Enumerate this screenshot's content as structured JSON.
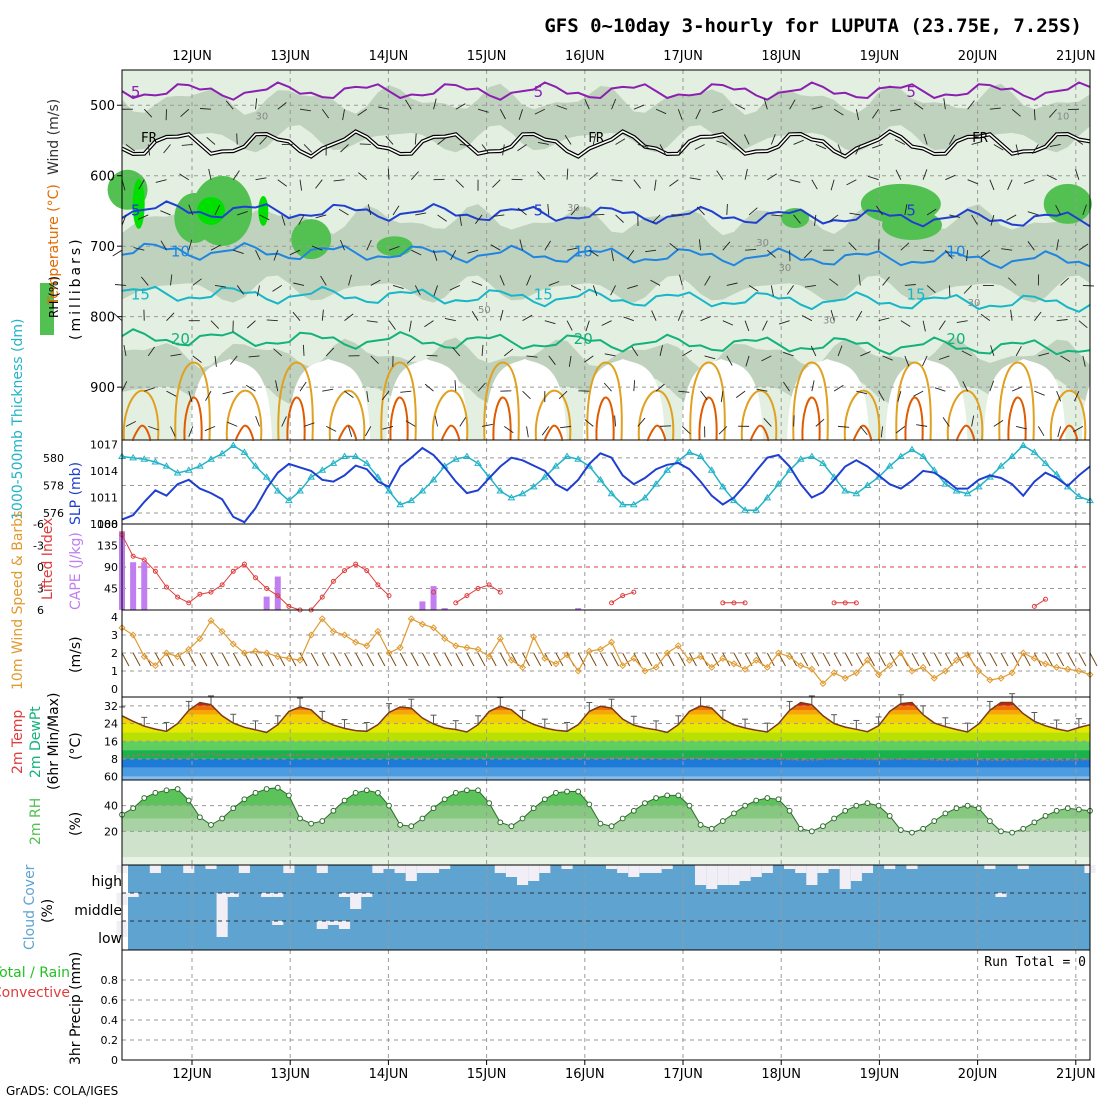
{
  "chart_data": {
    "type": "meteogram",
    "title": "GFS 0~10day 3-hourly for LUPUTA (23.75E, 7.25S)",
    "footer": "GrADS: COLA/IGES",
    "dates": [
      "12JUN",
      "13JUN",
      "14JUN",
      "15JUN",
      "16JUN",
      "17JUN",
      "18JUN",
      "19JUN",
      "20JUN",
      "21JUN"
    ],
    "colors": {
      "grid": "#9a9a9a",
      "frame": "#000000",
      "rh_light": "#e3efe0",
      "rh_mid": "#b9ccb6",
      "rh_green": "#52c152",
      "rh_bright": "#00e000",
      "thick": "#22b3c8",
      "slp": "#1f3fd0",
      "lifted": "#e03c3c",
      "cape": "#c07ef0",
      "wind": "#e09a30",
      "rh2m": "#52c152",
      "cloud": "#5fa3d1",
      "cloud_light": "#f1eef5"
    },
    "upper_air": {
      "ylabel": "(millibars)",
      "legend_labels": [
        "Wind (m/s)",
        "Temperature (°C)",
        "RH (%)"
      ],
      "pressure_ticks": [
        500,
        600,
        700,
        800,
        900
      ],
      "pressure_range": [
        450,
        975
      ],
      "isotherms": [
        {
          "label": "5",
          "color": "#8a1fb0",
          "level": 480
        },
        {
          "label": "FR",
          "color": "#000000",
          "level": 555
        },
        {
          "label": "5",
          "color": "#1f3fd0",
          "level": 648
        },
        {
          "label": "10",
          "color": "#1f85e0",
          "level": 706
        },
        {
          "label": "15",
          "color": "#17b6c8",
          "level": 767
        },
        {
          "label": "20",
          "color": "#12b27a",
          "level": 830
        }
      ],
      "contour_labels": [
        "30",
        "50",
        "10"
      ]
    },
    "thickness_slp": {
      "left_label": "1000-500mb Thickness (dm)",
      "right_label": "SLP (mb)",
      "left_ticks": [
        576,
        578,
        580
      ],
      "left_range": [
        575.2,
        581.3
      ],
      "right_ticks": [
        1008,
        1011,
        1014,
        1017
      ],
      "right_range": [
        1008,
        1017.5
      ],
      "thickness": [
        580.1,
        580.0,
        579.9,
        579.7,
        579.4,
        578.9,
        579.1,
        579.4,
        579.9,
        580.3,
        580.9,
        580.4,
        579.4,
        578.6,
        577.6,
        576.9,
        577.6,
        578.6,
        579.1,
        579.6,
        580.1,
        580.1,
        579.6,
        578.6,
        577.6,
        576.6,
        576.9,
        577.6,
        578.4,
        579.4,
        579.9,
        580.1,
        579.6,
        578.6,
        577.6,
        577.1,
        577.4,
        577.9,
        578.6,
        579.4,
        580.1,
        579.9,
        579.4,
        578.4,
        577.4,
        576.6,
        576.6,
        577.1,
        578.1,
        579.1,
        579.8,
        580.4,
        580.1,
        579.1,
        577.9,
        576.9,
        576.2,
        576.2,
        577.1,
        578.1,
        579.1,
        579.9,
        580.1,
        579.6,
        578.6,
        577.6,
        577.4,
        578.0,
        578.6,
        579.4,
        580.1,
        580.6,
        580.1,
        579.1,
        578.1,
        577.6,
        577.4,
        577.9,
        578.6,
        579.4,
        580.1,
        580.9,
        580.4,
        579.6,
        578.8,
        577.9,
        577.2,
        576.9
      ],
      "slp": [
        1008.5,
        1009.0,
        1010.5,
        1011.8,
        1011.2,
        1012.5,
        1013.0,
        1012.0,
        1011.5,
        1010.8,
        1008.8,
        1008.2,
        1009.8,
        1012.0,
        1013.8,
        1014.8,
        1014.4,
        1014.0,
        1013.0,
        1012.8,
        1013.5,
        1014.6,
        1014.2,
        1012.8,
        1012.2,
        1014.5,
        1015.5,
        1016.6,
        1015.8,
        1014.4,
        1012.8,
        1011.5,
        1011.8,
        1013.2,
        1014.5,
        1015.5,
        1015.2,
        1014.6,
        1014.0,
        1012.5,
        1011.8,
        1013.0,
        1014.8,
        1016.0,
        1015.5,
        1013.5,
        1012.5,
        1013.2,
        1014.2,
        1014.7,
        1014.9,
        1014.2,
        1012.8,
        1011.2,
        1010.2,
        1011.0,
        1012.4,
        1014.0,
        1015.5,
        1015.8,
        1014.5,
        1012.5,
        1011.0,
        1011.6,
        1013.0,
        1014.5,
        1015.2,
        1014.5,
        1013.5,
        1012.5,
        1012.0,
        1012.9,
        1014.0,
        1013.8,
        1013.0,
        1012.0,
        1012.0,
        1013.0,
        1013.5,
        1013.2,
        1012.5,
        1011.2,
        1012.8,
        1013.8,
        1013.2,
        1012.3,
        1013.5,
        1014.5
      ]
    },
    "cape_li": {
      "left_label": "Lifted Index",
      "right_label": "CAPE (J/kg)",
      "li_ticks": [
        -6,
        -3,
        0,
        3,
        6
      ],
      "cape_ticks": [
        45,
        90,
        135,
        180
      ],
      "cape": [
        165,
        100,
        100,
        0,
        0,
        0,
        0,
        0,
        0,
        0,
        0,
        0,
        0,
        28,
        70,
        0,
        0,
        0,
        0,
        0,
        0,
        0,
        0,
        0,
        0,
        0,
        0,
        18,
        50,
        4,
        0,
        0,
        0,
        0,
        0,
        0,
        0,
        0,
        0,
        0,
        0,
        4,
        0,
        0,
        0,
        0,
        0,
        0,
        0,
        0,
        0,
        0,
        0,
        0,
        0,
        0,
        0,
        0,
        0,
        0,
        0,
        0,
        0,
        0,
        0,
        0,
        0,
        0,
        0,
        0,
        0,
        0,
        0,
        0,
        0,
        0,
        0,
        0,
        0,
        0,
        0,
        0,
        0,
        0,
        0,
        0,
        0,
        0
      ],
      "li": [
        -4.5,
        -1.5,
        -1.0,
        0.6,
        2.8,
        4.2,
        5.0,
        3.8,
        3.5,
        2.5,
        0.6,
        -0.4,
        1.5,
        3.0,
        4.0,
        5.5,
        6.0,
        6.0,
        4.2,
        2.0,
        0.5,
        -0.4,
        0.5,
        2.5,
        4.0,
        null,
        null,
        null,
        3.5,
        null,
        5.0,
        4.0,
        3.0,
        2.5,
        3.5,
        null,
        null,
        null,
        null,
        null,
        null,
        null,
        null,
        null,
        5.0,
        4.0,
        3.5,
        null,
        null,
        null,
        null,
        null,
        null,
        null,
        5.0,
        5.0,
        5.0,
        null,
        null,
        null,
        null,
        null,
        null,
        null,
        5.0,
        5.0,
        5.0,
        null,
        null,
        null,
        null,
        null,
        null,
        null,
        null,
        null,
        null,
        null,
        null,
        null,
        null,
        null,
        5.5,
        4.5,
        null,
        null,
        null,
        null
      ]
    },
    "wind10m": {
      "label": "10m Wind Speed & Barbs",
      "unit": "(m/s)",
      "ticks": [
        0,
        1,
        2,
        3,
        4
      ],
      "speed": [
        3.4,
        3.0,
        1.8,
        1.3,
        2.0,
        1.8,
        2.2,
        2.8,
        3.8,
        3.2,
        2.5,
        2.0,
        2.1,
        2.0,
        1.8,
        1.7,
        1.6,
        3.0,
        3.9,
        3.2,
        3.0,
        2.6,
        2.4,
        3.2,
        2.0,
        2.3,
        3.9,
        3.6,
        3.4,
        2.8,
        2.4,
        2.3,
        2.2,
        1.8,
        2.8,
        1.6,
        1.2,
        2.9,
        1.7,
        1.4,
        1.9,
        1.0,
        2.1,
        2.2,
        2.6,
        1.3,
        1.7,
        1.0,
        1.2,
        2.0,
        2.4,
        1.6,
        1.8,
        1.2,
        1.7,
        1.4,
        1.1,
        1.6,
        1.2,
        2.0,
        1.8,
        1.3,
        1.1,
        0.3,
        0.9,
        0.6,
        0.9,
        1.6,
        0.8,
        1.3,
        2.0,
        1.0,
        1.2,
        0.6,
        1.0,
        1.6,
        1.9,
        1.0,
        0.5,
        0.6,
        0.9,
        2.0,
        1.7,
        1.4,
        1.2,
        1.1,
        1.0,
        0.8
      ]
    },
    "temp2m": {
      "labels": [
        "2m Temp",
        "2m DewPt",
        "(6hr Min/Max)",
        "(°C)"
      ],
      "ticks": [
        60,
        8,
        16,
        24,
        32
      ],
      "range": [
        -1.5,
        36
      ],
      "bands": [
        {
          "lo": 24,
          "hi": 28,
          "color": "#f5d000"
        },
        {
          "lo": 20,
          "hi": 24,
          "color": "#e6e800"
        },
        {
          "lo": 16,
          "hi": 20,
          "color": "#b9e000"
        },
        {
          "lo": 12,
          "hi": 16,
          "color": "#5fd05f"
        },
        {
          "lo": 8,
          "hi": 12,
          "color": "#1ab24a"
        },
        {
          "lo": 4,
          "hi": 8,
          "color": "#1d7ad9"
        },
        {
          "lo": 0,
          "hi": 4,
          "color": "#4d9be0"
        },
        {
          "lo": -1.5,
          "hi": 0,
          "color": "#85bdeb"
        }
      ],
      "hot_bands": [
        {
          "lo": 28,
          "hi": 30,
          "color": "#f6a800"
        },
        {
          "lo": 30,
          "hi": 32,
          "color": "#ef7000"
        },
        {
          "lo": 32,
          "hi": 36,
          "color": "#d62000"
        }
      ],
      "temp": [
        27.5,
        25.0,
        22.8,
        21.5,
        20.5,
        24.0,
        30.0,
        33.5,
        32.5,
        27.5,
        24.2,
        22.3,
        21.2,
        20.0,
        23.5,
        29.5,
        31.5,
        30.2,
        25.5,
        23.3,
        21.8,
        20.8,
        20.5,
        23.5,
        29.0,
        31.5,
        31.0,
        26.5,
        23.8,
        22.0,
        21.3,
        20.2,
        23.5,
        29.5,
        31.8,
        30.2,
        26.0,
        23.6,
        22.0,
        21.0,
        20.5,
        23.5,
        29.5,
        31.8,
        31.0,
        26.0,
        23.3,
        22.0,
        21.2,
        20.0,
        23.5,
        29.5,
        32.0,
        31.0,
        26.0,
        23.4,
        22.0,
        21.0,
        20.2,
        24.0,
        30.0,
        33.5,
        32.5,
        27.5,
        24.0,
        22.4,
        21.4,
        20.3,
        23.0,
        29.5,
        33.0,
        33.5,
        28.0,
        24.3,
        22.6,
        21.3,
        20.2,
        23.8,
        30.0,
        33.5,
        33.5,
        28.5,
        25.0,
        23.0,
        21.6,
        20.6,
        22.2,
        23.5
      ],
      "dewpt": [
        9.0,
        9.5,
        10.0,
        9.8,
        9.5,
        9.2,
        9.3,
        9.8,
        10.4,
        9.8,
        9.4,
        9.3,
        9.2,
        9.0,
        9.3,
        9.8,
        10.0,
        9.6,
        9.2,
        9.0,
        9.0,
        9.1,
        9.4,
        9.6,
        9.2,
        8.9,
        8.8,
        8.9,
        9.3,
        9.6,
        9.2,
        9.0,
        8.8,
        8.8,
        9.0,
        9.2,
        9.0,
        8.7,
        8.5,
        8.6,
        8.8,
        8.7,
        8.5,
        8.4,
        8.6,
        8.8,
        8.9,
        8.6,
        8.4,
        8.2,
        8.3,
        8.5,
        8.6,
        8.4,
        8.3,
        8.2,
        8.3,
        8.5,
        8.4,
        8.1,
        7.8,
        7.5,
        7.6,
        7.8,
        8.2,
        8.4,
        8.1,
        7.8,
        7.7,
        7.8,
        8.1,
        7.9,
        7.8,
        7.6,
        7.4,
        7.5,
        7.8,
        7.6,
        7.5,
        7.4,
        7.5,
        7.7,
        7.6,
        7.5,
        7.4,
        7.5,
        7.6,
        7.8
      ]
    },
    "rh2m": {
      "label": "2m RH",
      "unit": "(%)",
      "ticks": [
        20,
        40
      ],
      "range": [
        0,
        60
      ],
      "values": [
        33,
        38,
        46,
        50,
        52,
        53,
        44,
        31,
        25,
        30,
        38,
        45,
        50,
        53,
        54,
        48,
        30,
        26,
        28,
        36,
        44,
        50,
        52,
        50,
        40,
        25,
        24,
        30,
        38,
        45,
        50,
        52,
        52,
        42,
        27,
        24,
        30,
        38,
        45,
        50,
        51,
        51,
        41,
        26,
        24,
        30,
        36,
        42,
        46,
        48,
        48,
        40,
        25,
        22,
        28,
        34,
        40,
        44,
        46,
        45,
        36,
        22,
        20,
        24,
        30,
        36,
        40,
        42,
        40,
        32,
        21,
        19,
        22,
        28,
        34,
        38,
        40,
        38,
        28,
        20,
        19,
        22,
        27,
        32,
        36,
        38,
        37,
        36
      ]
    },
    "cloud": {
      "label": "Cloud Cover",
      "unit": "(%)",
      "levels": [
        "high",
        "middle",
        "low"
      ],
      "high_light": [
        [
          0,
          2
        ],
        [
          3,
          2
        ],
        [
          6,
          2
        ],
        [
          8,
          1
        ],
        [
          11,
          2
        ],
        [
          15,
          2
        ],
        [
          18,
          2
        ],
        [
          23,
          2
        ],
        [
          24,
          1
        ],
        [
          25,
          2
        ],
        [
          26,
          4
        ],
        [
          27,
          2
        ],
        [
          28,
          2
        ],
        [
          29,
          1
        ],
        [
          34,
          2
        ],
        [
          35,
          3
        ],
        [
          36,
          5
        ],
        [
          37,
          4
        ],
        [
          38,
          2
        ],
        [
          40,
          1
        ],
        [
          44,
          1
        ],
        [
          45,
          2
        ],
        [
          46,
          3
        ],
        [
          47,
          2
        ],
        [
          48,
          2
        ],
        [
          49,
          1
        ],
        [
          52,
          5
        ],
        [
          53,
          6
        ],
        [
          54,
          5
        ],
        [
          55,
          5
        ],
        [
          56,
          4
        ],
        [
          57,
          3
        ],
        [
          58,
          2
        ],
        [
          60,
          1
        ],
        [
          61,
          2
        ],
        [
          62,
          5
        ],
        [
          63,
          2
        ],
        [
          64,
          1
        ],
        [
          65,
          6
        ],
        [
          66,
          4
        ],
        [
          67,
          2
        ],
        [
          69,
          1
        ],
        [
          71,
          1
        ],
        [
          78,
          1
        ],
        [
          81,
          1
        ],
        [
          87,
          2
        ]
      ],
      "mid_light": [
        [
          0,
          3
        ],
        [
          1,
          1
        ],
        [
          9,
          8
        ],
        [
          10,
          1
        ],
        [
          13,
          1
        ],
        [
          14,
          1
        ],
        [
          20,
          1
        ],
        [
          21,
          4
        ],
        [
          22,
          1
        ],
        [
          79,
          1
        ]
      ],
      "low_light": [
        [
          0,
          4
        ],
        [
          9,
          4
        ],
        [
          14,
          1
        ],
        [
          18,
          2
        ],
        [
          20,
          2
        ],
        [
          19,
          1
        ]
      ]
    },
    "precip": {
      "label": "3hr Precip (mm)",
      "legend": [
        "Total / Rain",
        "Convective"
      ],
      "run_total": "Run Total = 0",
      "ticks": [
        0,
        0.2,
        0.4,
        0.6,
        0.8
      ],
      "range": [
        0,
        1
      ],
      "values": []
    }
  }
}
